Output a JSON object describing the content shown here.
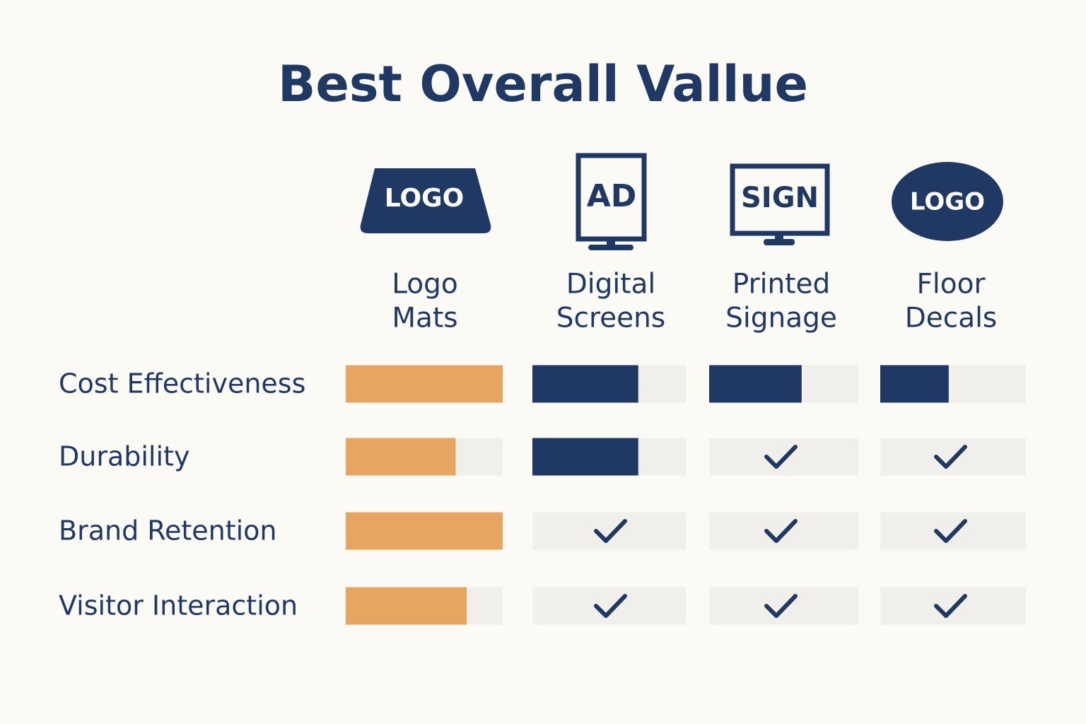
{
  "title": "Best Overall Vallue",
  "columns": [
    {
      "icon_text": "LOGO",
      "label": [
        "Logo",
        "Mats"
      ],
      "color": "#e8a562"
    },
    {
      "icon_text": "AD",
      "label": [
        "Digital",
        "Screens"
      ],
      "color": "#1f3864"
    },
    {
      "icon_text": "SIGN",
      "label": [
        "Printed",
        "Signage"
      ],
      "color": "#1f3864"
    },
    {
      "icon_text": "LOGO",
      "label": [
        "Floor",
        "Decals"
      ],
      "color": "#1f3864"
    }
  ],
  "rows": [
    {
      "label": "Cost Effectiveness",
      "cells": [
        {
          "value": 100
        },
        {
          "value": 69
        },
        {
          "value": 62
        },
        {
          "value": 47
        }
      ]
    },
    {
      "label": "Durability",
      "cells": [
        {
          "value": 70
        },
        {
          "value": 69
        },
        {
          "check": true
        },
        {
          "check": true
        }
      ]
    },
    {
      "label": "Brand Retention",
      "cells": [
        {
          "value": 100
        },
        {
          "check": true
        },
        {
          "check": true
        },
        {
          "check": true
        }
      ]
    },
    {
      "label": "Visitor Interaction",
      "cells": [
        {
          "value": 77
        },
        {
          "check": true
        },
        {
          "check": true
        },
        {
          "check": true
        }
      ]
    }
  ]
}
